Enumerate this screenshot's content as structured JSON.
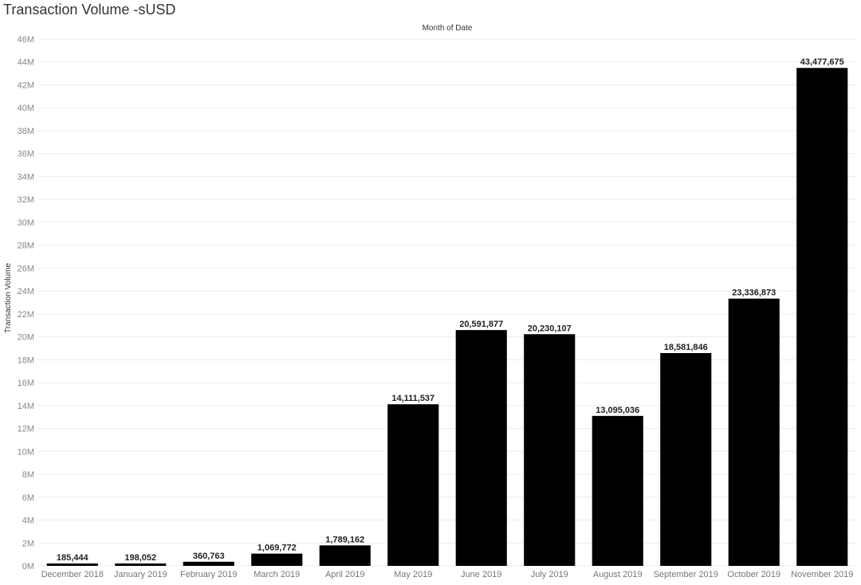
{
  "chart_data": {
    "type": "bar",
    "title": "Transaction Volume -sUSD",
    "xlabel": "Month of Date",
    "ylabel": "Transaction Volume",
    "categories": [
      "December 2018",
      "January 2019",
      "February 2019",
      "March 2019",
      "April 2019",
      "May 2019",
      "June 2019",
      "July 2019",
      "August 2019",
      "September 2019",
      "October 2019",
      "November 2019"
    ],
    "values": [
      185444,
      198052,
      360763,
      1069772,
      1789162,
      14111537,
      20591877,
      20230107,
      13095036,
      18581846,
      23336873,
      43477675
    ],
    "data_labels": [
      "185,444",
      "198,052",
      "360,763",
      "1,069,772",
      "1,789,162",
      "14,111,537",
      "20,591,877",
      "20,230,107",
      "13,095,036",
      "18,581,846",
      "23,336,873",
      "43,477,675"
    ],
    "ylim": [
      0,
      46000000
    ],
    "yticks": [
      "0M",
      "2M",
      "4M",
      "6M",
      "8M",
      "10M",
      "12M",
      "14M",
      "16M",
      "18M",
      "20M",
      "22M",
      "24M",
      "26M",
      "28M",
      "30M",
      "32M",
      "34M",
      "36M",
      "38M",
      "40M",
      "42M",
      "44M",
      "46M"
    ],
    "grid": true,
    "legend": "none",
    "bar_color": "#000000",
    "xlabel_position": "top"
  }
}
